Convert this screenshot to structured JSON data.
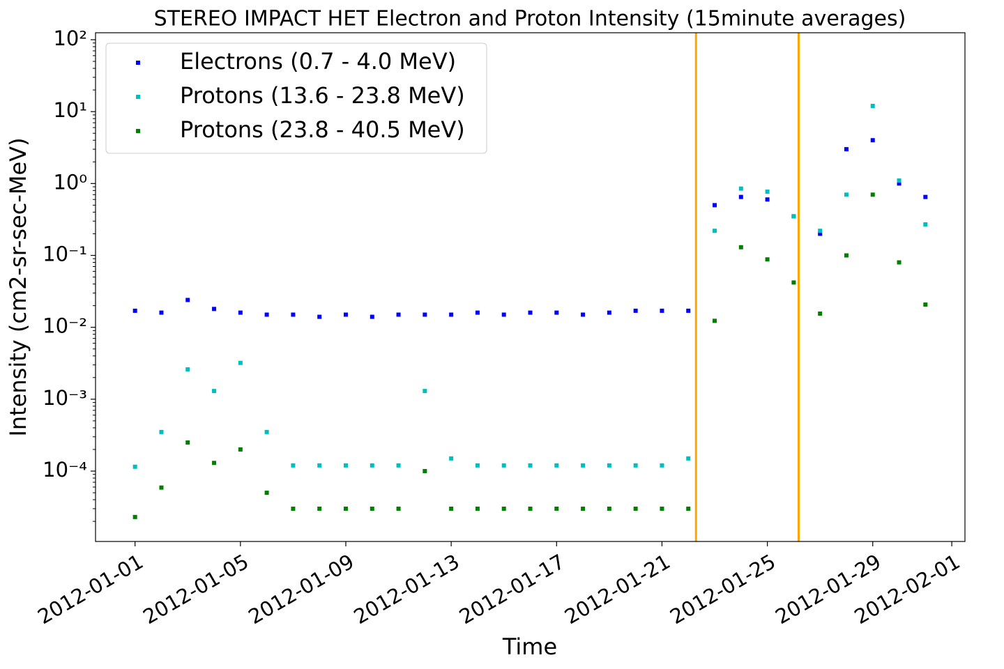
{
  "chart_data": {
    "type": "scatter",
    "title": "STEREO IMPACT HET Electron and Proton Intensity (15minute averages)",
    "x_label": "Time",
    "y_label": "Intensity (cm2-sr-sec-MeV)",
    "y_scale": "log",
    "legend": "upper left",
    "x": [
      "2012-01-01",
      "2012-01-02",
      "2012-01-03",
      "2012-01-04",
      "2012-01-05",
      "2012-01-06",
      "2012-01-07",
      "2012-01-08",
      "2012-01-09",
      "2012-01-10",
      "2012-01-11",
      "2012-01-12",
      "2012-01-13",
      "2012-01-14",
      "2012-01-15",
      "2012-01-16",
      "2012-01-17",
      "2012-01-18",
      "2012-01-19",
      "2012-01-20",
      "2012-01-21",
      "2012-01-22",
      "2012-01-23",
      "2012-01-24",
      "2012-01-25",
      "2012-01-26",
      "2012-01-27",
      "2012-01-28",
      "2012-01-29",
      "2012-01-30",
      "2012-01-31"
    ],
    "series": [
      {
        "name": "Electrons (0.7 - 4.0 MeV)",
        "color": "#0000ff",
        "values": [
          0.017,
          0.016,
          0.024,
          0.018,
          0.016,
          0.015,
          0.015,
          0.014,
          0.015,
          0.014,
          0.015,
          0.015,
          0.015,
          0.016,
          0.015,
          0.016,
          0.016,
          0.015,
          0.016,
          0.017,
          0.017,
          0.017,
          0.5,
          0.65,
          0.6,
          0.35,
          0.2,
          3.0,
          4.0,
          1.0,
          0.65
        ]
      },
      {
        "name": "Protons (13.6 - 23.8 MeV)",
        "color": "#00bfbf",
        "values": [
          0.000115,
          0.00035,
          0.0026,
          0.0013,
          0.0032,
          0.00035,
          0.00012,
          0.00012,
          0.00012,
          0.00012,
          0.00012,
          0.0013,
          0.00015,
          0.00012,
          0.00012,
          0.00012,
          0.00012,
          0.00012,
          0.00012,
          0.00012,
          0.00012,
          0.00015,
          0.22,
          0.85,
          0.77,
          0.35,
          0.22,
          0.7,
          12,
          1.1,
          0.27
        ]
      },
      {
        "name": "Protons (23.8 - 40.5 MeV)",
        "color": "#008000",
        "values": [
          2.3e-05,
          5.9e-05,
          0.00025,
          0.00013,
          0.0002,
          5e-05,
          3e-05,
          3e-05,
          3e-05,
          3e-05,
          3e-05,
          0.0001,
          3e-05,
          3e-05,
          3e-05,
          3e-05,
          3e-05,
          3e-05,
          3e-05,
          3e-05,
          3e-05,
          3e-05,
          0.0123,
          0.13,
          0.088,
          0.042,
          0.0155,
          0.1,
          0.7,
          0.08,
          0.0207
        ]
      }
    ],
    "vlines": {
      "color": "#ffa500",
      "x": [
        "2012-01-22T07:00",
        "2012-01-26T04:30"
      ]
    },
    "xlim": [
      "2011-12-30T12:00",
      "2012-02-01T12:00"
    ],
    "xticks": [
      "2012-01-01",
      "2012-01-05",
      "2012-01-09",
      "2012-01-13",
      "2012-01-17",
      "2012-01-21",
      "2012-01-25",
      "2012-01-29",
      "2012-02-01"
    ],
    "ylim": [
      1.05e-05,
      125
    ],
    "yticks": [
      {
        "value": 0.0001,
        "label": "10⁻⁴"
      },
      {
        "value": 0.001,
        "label": "10⁻³"
      },
      {
        "value": 0.01,
        "label": "10⁻²"
      },
      {
        "value": 0.1,
        "label": "10⁻¹"
      },
      {
        "value": 1,
        "label": "10⁰"
      },
      {
        "value": 10,
        "label": "10¹"
      },
      {
        "value": 100,
        "label": "10²"
      }
    ]
  }
}
